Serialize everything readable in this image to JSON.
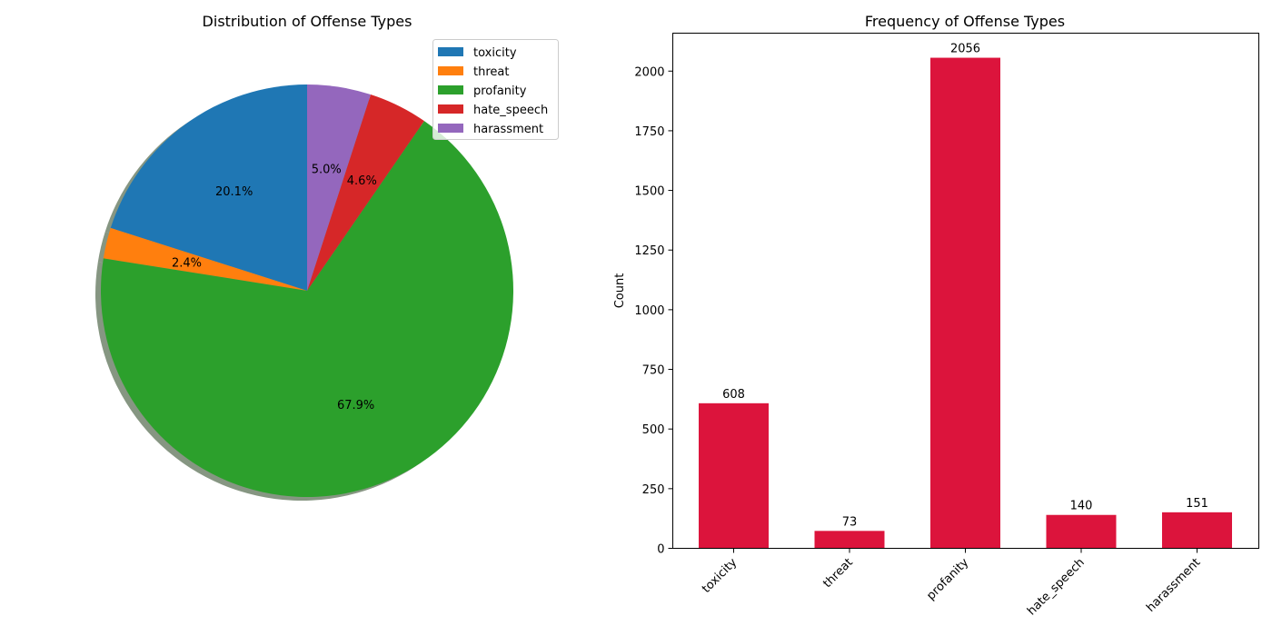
{
  "chart_data": [
    {
      "type": "pie",
      "title": "Distribution of Offense Types",
      "categories": [
        "toxicity",
        "threat",
        "profanity",
        "hate_speech",
        "harassment"
      ],
      "values": [
        608,
        73,
        2056,
        140,
        151
      ],
      "percent_labels": [
        "20.1%",
        "2.4%",
        "67.9%",
        "4.6%",
        "5.0%"
      ],
      "colors": [
        "#1f77b4",
        "#ff7f0e",
        "#2ca02c",
        "#d62728",
        "#9467bd"
      ],
      "start_angle": 90,
      "counterclockwise": true,
      "shadow": true,
      "legend_placement": "upper-right"
    },
    {
      "type": "bar",
      "title": "Frequency of Offense Types",
      "xlabel": "",
      "ylabel": "Count",
      "categories": [
        "toxicity",
        "threat",
        "profanity",
        "hate_speech",
        "harassment"
      ],
      "values": [
        608,
        73,
        2056,
        140,
        151
      ],
      "value_labels": [
        "608",
        "73",
        "2056",
        "140",
        "151"
      ],
      "yticks": [
        0,
        250,
        500,
        750,
        1000,
        1250,
        1500,
        1750,
        2000
      ],
      "ytick_labels": [
        "0",
        "250",
        "500",
        "750",
        "1000",
        "1250",
        "1500",
        "1750",
        "2000"
      ],
      "ylim": [
        0,
        2159
      ],
      "bar_color": "#dc143c",
      "grid": false,
      "xtick_rotation": 45
    }
  ]
}
